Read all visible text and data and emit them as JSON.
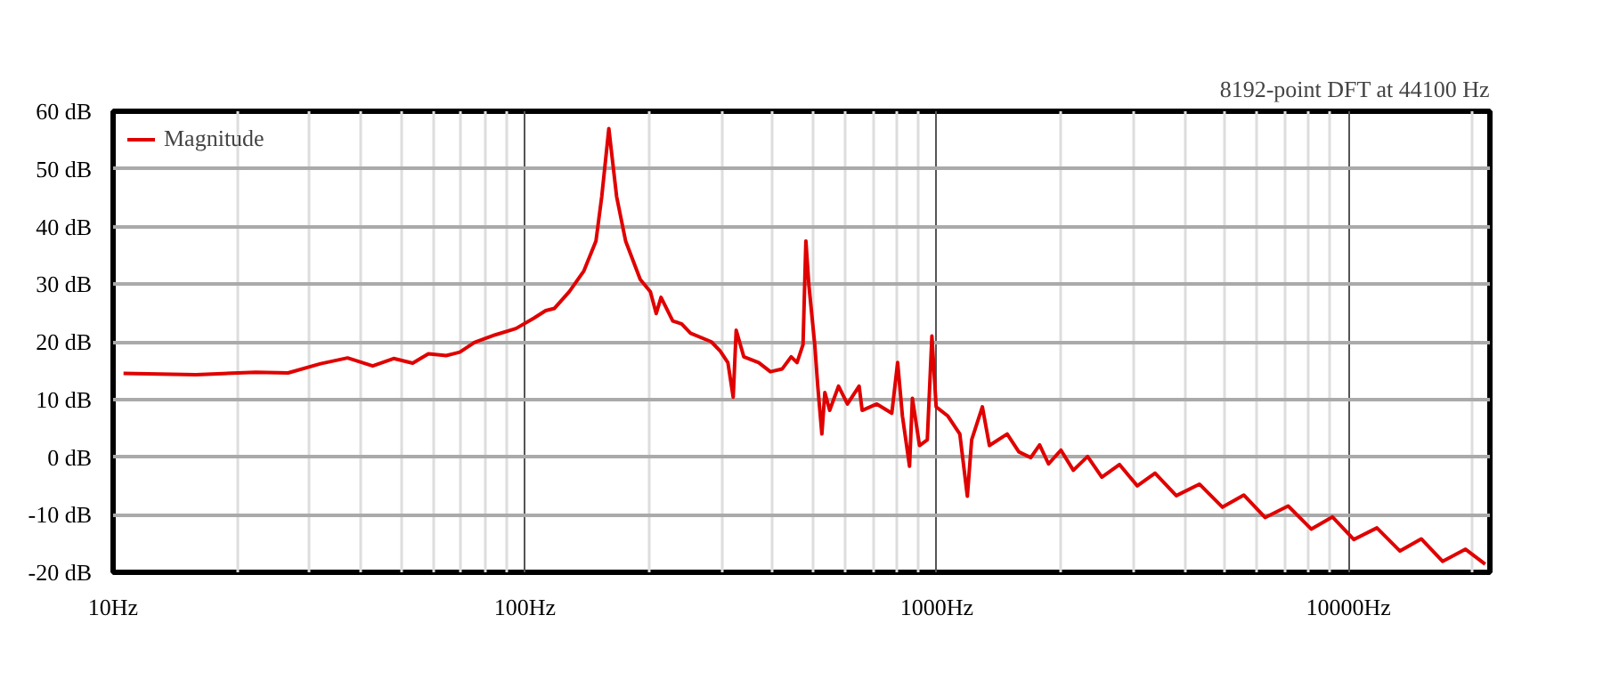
{
  "chart_data": {
    "type": "line",
    "subtitle": "8192-point DFT at 44100 Hz",
    "x": [
      10.6,
      15.9,
      22.2,
      26.6,
      31.9,
      37.1,
      42.7,
      48.0,
      53.4,
      58.3,
      64.4,
      69.5,
      75.5,
      84.7,
      95.1,
      105.1,
      112.3,
      118.0,
      128.2,
      139.1,
      148.8,
      153.7,
      159.9,
      167.0,
      175.6,
      190.6,
      201.7,
      208.4,
      214.1,
      228.6,
      240.2,
      252.5,
      283.6,
      298.0,
      311.1,
      320.5,
      325.9,
      340.1,
      369.6,
      394.6,
      421.7,
      443.2,
      458.0,
      473.6,
      481.2,
      489.4,
      505.7,
      514.3,
      526.2,
      535.1,
      549.7,
      577.6,
      607.1,
      648.0,
      659.1,
      715.6,
      778.0,
      803.9,
      825.7,
      859.1,
      873.0,
      908.3,
      948.9,
      973.6,
      997.0,
      1065,
      1138,
      1187,
      1216,
      1291,
      1343,
      1483,
      1583,
      1692,
      1778,
      1869,
      2003,
      2147,
      2325,
      2518,
      2780,
      3070,
      3390,
      3818,
      4345,
      4943,
      5568,
      6272,
      7137,
      8119,
      9146,
      10302,
      11722,
      13335,
      15021,
      16920,
      19241,
      21477
    ],
    "series": [
      {
        "name": "Magnitude",
        "color": "#e00000",
        "values": [
          14.5,
          14.3,
          14.7,
          14.6,
          16.2,
          17.2,
          15.8,
          17.1,
          16.3,
          17.9,
          17.6,
          18.2,
          19.9,
          21.2,
          22.3,
          24.1,
          25.4,
          25.8,
          28.7,
          32.3,
          37.5,
          45.2,
          57.0,
          45.2,
          37.5,
          30.8,
          28.7,
          24.9,
          27.7,
          23.6,
          23.1,
          21.5,
          20.0,
          18.4,
          16.4,
          10.4,
          22.0,
          17.4,
          16.4,
          14.8,
          15.3,
          17.4,
          16.4,
          19.5,
          37.5,
          29.8,
          19.5,
          12.3,
          4.0,
          11.2,
          8.1,
          12.3,
          9.2,
          12.3,
          8.1,
          9.2,
          7.6,
          16.4,
          7.1,
          -1.6,
          10.2,
          2.0,
          3.0,
          21.0,
          8.7,
          7.1,
          4.0,
          -6.8,
          3.0,
          8.7,
          2.0,
          4.0,
          0.9,
          -0.1,
          2.1,
          -1.2,
          1.2,
          -2.3,
          0.1,
          -3.5,
          -1.3,
          -5.0,
          -2.8,
          -6.7,
          -4.7,
          -8.7,
          -6.6,
          -10.5,
          -8.5,
          -12.5,
          -10.4,
          -14.3,
          -12.3,
          -16.3,
          -14.2,
          -18.1,
          -16.0,
          -18.6
        ]
      }
    ],
    "log": "x",
    "xlim": [
      10,
      22050
    ],
    "xticks": [
      {
        "value": 10,
        "label": "10Hz"
      },
      {
        "value": 20,
        "label": null
      },
      {
        "value": 30,
        "label": null
      },
      {
        "value": 40,
        "label": null
      },
      {
        "value": 50,
        "label": null
      },
      {
        "value": 60,
        "label": null
      },
      {
        "value": 70,
        "label": null
      },
      {
        "value": 80,
        "label": null
      },
      {
        "value": 90,
        "label": null
      },
      {
        "value": 100,
        "label": "100Hz"
      },
      {
        "value": 200,
        "label": null
      },
      {
        "value": 300,
        "label": null
      },
      {
        "value": 400,
        "label": null
      },
      {
        "value": 500,
        "label": null
      },
      {
        "value": 600,
        "label": null
      },
      {
        "value": 700,
        "label": null
      },
      {
        "value": 800,
        "label": null
      },
      {
        "value": 900,
        "label": null
      },
      {
        "value": 1000,
        "label": "1000Hz"
      },
      {
        "value": 2000,
        "label": null
      },
      {
        "value": 3000,
        "label": null
      },
      {
        "value": 4000,
        "label": null
      },
      {
        "value": 5000,
        "label": null
      },
      {
        "value": 6000,
        "label": null
      },
      {
        "value": 7000,
        "label": null
      },
      {
        "value": 8000,
        "label": null
      },
      {
        "value": 9000,
        "label": null
      },
      {
        "value": 10000,
        "label": "10000Hz"
      },
      {
        "value": 20000,
        "label": null
      }
    ],
    "ylim": [
      -20,
      60
    ],
    "yticks": [
      {
        "value": -20,
        "label": "-20 dB"
      },
      {
        "value": -10,
        "label": "-10 dB"
      },
      {
        "value": 0,
        "label": "0 dB"
      },
      {
        "value": 10,
        "label": "10 dB"
      },
      {
        "value": 20,
        "label": "20 dB"
      },
      {
        "value": 30,
        "label": "30 dB"
      },
      {
        "value": 40,
        "label": "40 dB"
      },
      {
        "value": 50,
        "label": "50 dB"
      },
      {
        "value": 60,
        "label": "60 dB"
      }
    ],
    "grid": true,
    "legend": "top left",
    "line_style": "solid"
  }
}
